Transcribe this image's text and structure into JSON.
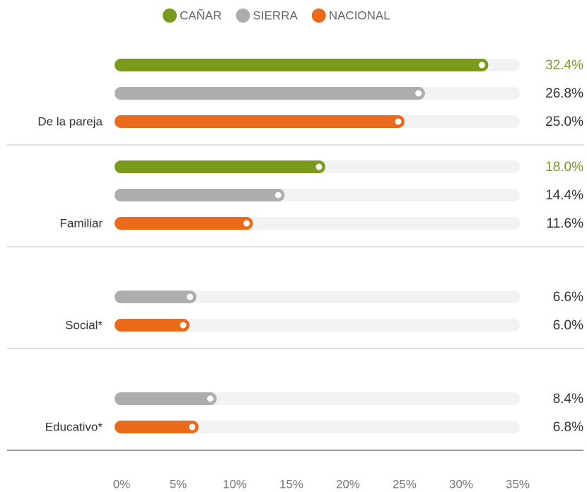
{
  "chart_data": {
    "type": "bar",
    "orientation": "horizontal",
    "categories": [
      "De la pareja",
      "Familiar",
      "Social*",
      "Educativo*"
    ],
    "series": [
      {
        "name": "CAÑAR",
        "color": "#7a9a1c",
        "values": [
          32.4,
          18.0,
          null,
          null
        ],
        "value_labels": [
          "32.4%",
          "18.0%",
          null,
          null
        ]
      },
      {
        "name": "SIERRA",
        "color": "#adadad",
        "values": [
          26.8,
          14.4,
          6.6,
          8.4
        ],
        "value_labels": [
          "26.8%",
          "14.4%",
          "6.6%",
          "8.4%"
        ]
      },
      {
        "name": "NACIONAL",
        "color": "#ea6a1a",
        "values": [
          25.0,
          11.6,
          6.0,
          6.8
        ],
        "value_labels": [
          "25.0%",
          "11.6%",
          "6.0%",
          "6.8%"
        ]
      }
    ],
    "xlim": [
      0,
      35
    ],
    "xticks": [
      {
        "value": 0,
        "label": "0%"
      },
      {
        "value": 5,
        "label": "5%"
      },
      {
        "value": 10,
        "label": "10%"
      },
      {
        "value": 15,
        "label": "15%"
      },
      {
        "value": 20,
        "label": "20%"
      },
      {
        "value": 25,
        "label": "25%"
      },
      {
        "value": 30,
        "label": "30%"
      },
      {
        "value": 35,
        "label": "35%"
      }
    ],
    "legend": "top"
  }
}
